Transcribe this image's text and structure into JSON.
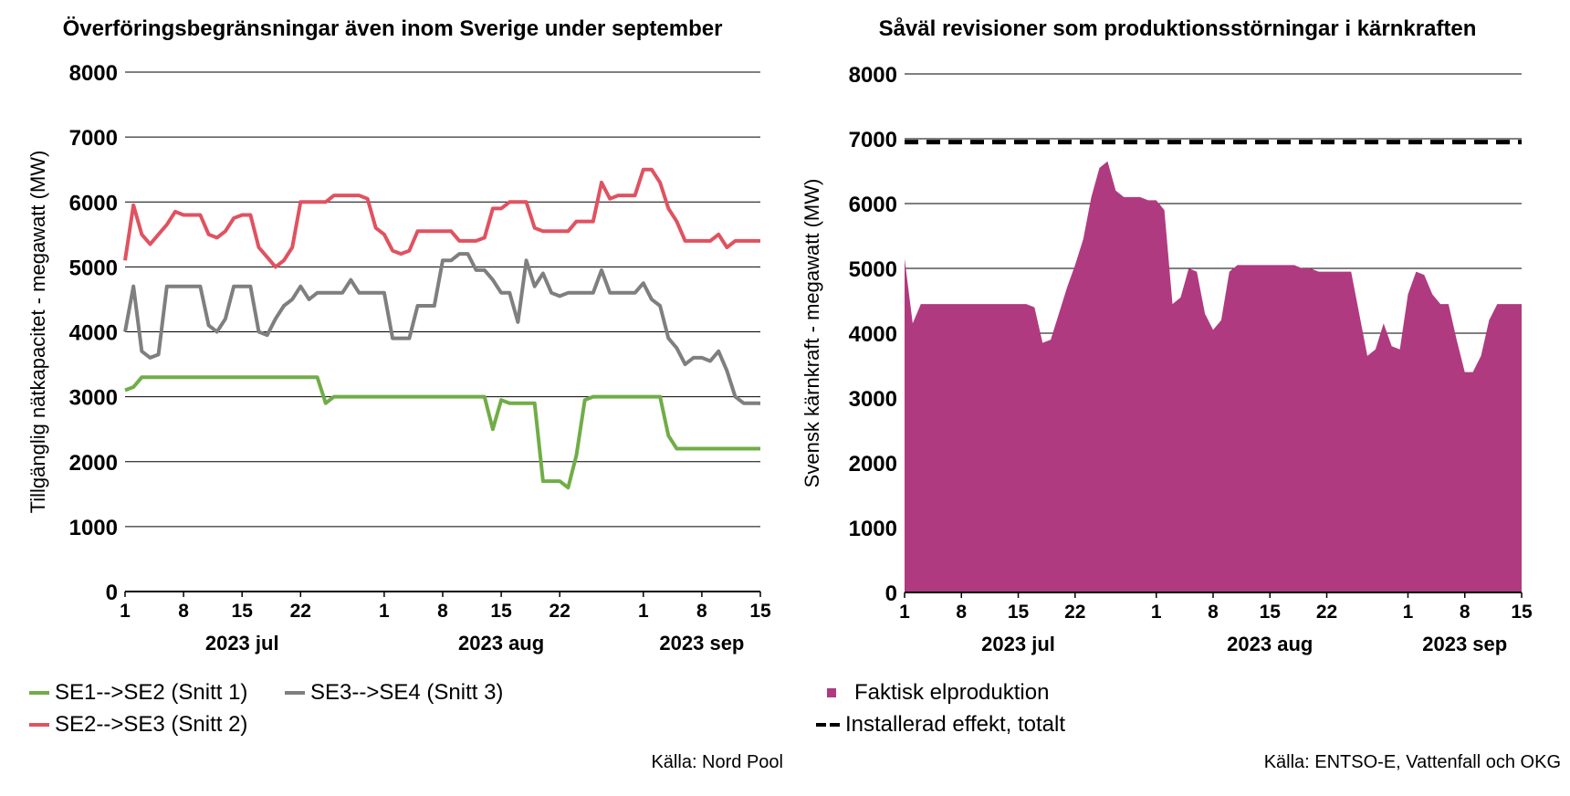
{
  "left": {
    "title": "Överföringsbegränsningar även inom Sverige under september",
    "source": "Källa: Nord Pool",
    "legend": [
      "SE1-->SE2 (Snitt 1)",
      "SE3-->SE4 (Snitt 3)",
      "SE2-->SE3 (Snitt 2)"
    ]
  },
  "right": {
    "title": "Såväl revisioner som produktionsstörningar i kärnkraften",
    "source": "Källa: ENTSO-E, Vattenfall och OKG",
    "legend": [
      "Faktisk elproduktion",
      "Installerad effekt, totalt"
    ]
  },
  "chart_data": [
    {
      "type": "line",
      "title": "Överföringsbegränsningar även inom Sverige under september",
      "ylabel": "Tillgänglig nätkapacitet - megawatt (MW)",
      "ylim": [
        0,
        8000
      ],
      "yticks": [
        0,
        1000,
        2000,
        3000,
        4000,
        5000,
        6000,
        7000,
        8000
      ],
      "xrange": [
        "2023-07-01",
        "2023-09-15"
      ],
      "xtick_labels": [
        "1",
        "8",
        "15",
        "22",
        "1",
        "8",
        "15",
        "22",
        "1",
        "8",
        "15"
      ],
      "month_labels": [
        "2023 jul",
        "2023 aug",
        "2023 sep"
      ],
      "grid": true,
      "legend_position": "bottom",
      "series": [
        {
          "name": "SE1-->SE2 (Snitt 1)",
          "color": "#70ad47",
          "values": [
            3100,
            3150,
            3300,
            3300,
            3300,
            3300,
            3300,
            3300,
            3300,
            3300,
            3300,
            3300,
            3300,
            3300,
            3300,
            3300,
            3300,
            3300,
            3300,
            3300,
            3300,
            3300,
            3300,
            3300,
            2900,
            3000,
            3000,
            3000,
            3000,
            3000,
            3000,
            3000,
            3000,
            3000,
            3000,
            3000,
            3000,
            3000,
            3000,
            3000,
            3000,
            3000,
            3000,
            3000,
            2500,
            2950,
            2900,
            2900,
            2900,
            2900,
            1700,
            1700,
            1700,
            1600,
            2100,
            2950,
            3000,
            3000,
            3000,
            3000,
            3000,
            3000,
            3000,
            3000,
            3000,
            2400,
            2200,
            2200,
            2200,
            2200,
            2200,
            2200,
            2200,
            2200,
            2200,
            2200,
            2200
          ]
        },
        {
          "name": "SE3-->SE4 (Snitt 3)",
          "color": "#7f7f7f",
          "values": [
            4000,
            4700,
            3700,
            3600,
            3650,
            4700,
            4700,
            4700,
            4700,
            4700,
            4100,
            4000,
            4200,
            4700,
            4700,
            4700,
            4000,
            3950,
            4200,
            4400,
            4500,
            4700,
            4500,
            4600,
            4600,
            4600,
            4600,
            4800,
            4600,
            4600,
            4600,
            4600,
            3900,
            3900,
            3900,
            4400,
            4400,
            4400,
            5100,
            5100,
            5200,
            5200,
            4950,
            4950,
            4800,
            4600,
            4600,
            4150,
            5100,
            4700,
            4900,
            4600,
            4550,
            4600,
            4600,
            4600,
            4600,
            4950,
            4600,
            4600,
            4600,
            4600,
            4750,
            4500,
            4400,
            3900,
            3750,
            3500,
            3600,
            3600,
            3550,
            3700,
            3400,
            3000,
            2900,
            2900,
            2900
          ]
        },
        {
          "name": "SE2-->SE3 (Snitt 2)",
          "color": "#e05260",
          "values": [
            5100,
            5950,
            5500,
            5350,
            5500,
            5650,
            5850,
            5800,
            5800,
            5800,
            5500,
            5450,
            5550,
            5750,
            5800,
            5800,
            5300,
            5150,
            5000,
            5100,
            5300,
            6000,
            6000,
            6000,
            6000,
            6100,
            6100,
            6100,
            6100,
            6050,
            5600,
            5500,
            5250,
            5200,
            5250,
            5550,
            5550,
            5550,
            5550,
            5550,
            5400,
            5400,
            5400,
            5450,
            5900,
            5900,
            6000,
            6000,
            6000,
            5600,
            5550,
            5550,
            5550,
            5550,
            5700,
            5700,
            5700,
            6300,
            6050,
            6100,
            6100,
            6100,
            6500,
            6500,
            6300,
            5900,
            5700,
            5400,
            5400,
            5400,
            5400,
            5500,
            5300,
            5400,
            5400,
            5400,
            5400
          ]
        }
      ]
    },
    {
      "type": "area",
      "title": "Såväl revisioner som produktionsstörningar i kärnkraften",
      "ylabel": "Svensk kärnkraft - megawatt (MW)",
      "ylim": [
        0,
        8000
      ],
      "yticks": [
        0,
        1000,
        2000,
        3000,
        4000,
        5000,
        6000,
        7000,
        8000
      ],
      "xrange": [
        "2023-07-01",
        "2023-09-15"
      ],
      "xtick_labels": [
        "1",
        "8",
        "15",
        "22",
        "1",
        "8",
        "15",
        "22",
        "1",
        "8",
        "15"
      ],
      "month_labels": [
        "2023 jul",
        "2023 aug",
        "2023 sep"
      ],
      "grid": true,
      "legend_position": "bottom",
      "series": [
        {
          "name": "Faktisk elproduktion",
          "color": "#b03a7f",
          "values": [
            5150,
            4150,
            4450,
            4450,
            4450,
            4450,
            4450,
            4450,
            4450,
            4450,
            4450,
            4450,
            4450,
            4450,
            4450,
            4450,
            4400,
            3850,
            3900,
            4300,
            4700,
            5050,
            5450,
            6100,
            6550,
            6650,
            6200,
            6100,
            6100,
            6100,
            6050,
            6050,
            5900,
            4450,
            4550,
            5000,
            4950,
            4300,
            4050,
            4200,
            4950,
            5050,
            5050,
            5050,
            5050,
            5050,
            5050,
            5050,
            5050,
            5000,
            5000,
            4950,
            4950,
            4950,
            4950,
            4950,
            4300,
            3650,
            3750,
            4150,
            3800,
            3750,
            4600,
            4950,
            4900,
            4600,
            4450,
            4450,
            3900,
            3400,
            3400,
            3650,
            4200,
            4450,
            4450,
            4450,
            4450
          ]
        },
        {
          "name": "Installerad effekt, totalt",
          "color": "#000000",
          "values": [
            6950,
            6950,
            6950,
            6950,
            6950,
            6950,
            6950,
            6950,
            6950,
            6950,
            6950,
            6950,
            6950,
            6950,
            6950,
            6950,
            6950,
            6950,
            6950,
            6950,
            6950,
            6950,
            6950,
            6950,
            6950,
            6950,
            6950,
            6950,
            6950,
            6950,
            6950,
            6950,
            6950,
            6950,
            6950,
            6950,
            6950,
            6950,
            6950,
            6950,
            6950,
            6950,
            6950,
            6950,
            6950,
            6950,
            6950,
            6950,
            6950,
            6950,
            6950,
            6950,
            6950,
            6950,
            6950,
            6950,
            6950,
            6950,
            6950,
            6950,
            6950,
            6950,
            6950,
            6950,
            6950,
            6950,
            6950,
            6950,
            6950,
            6950,
            6950,
            6950,
            6950,
            6950,
            6950,
            6950,
            6950
          ]
        }
      ]
    }
  ]
}
